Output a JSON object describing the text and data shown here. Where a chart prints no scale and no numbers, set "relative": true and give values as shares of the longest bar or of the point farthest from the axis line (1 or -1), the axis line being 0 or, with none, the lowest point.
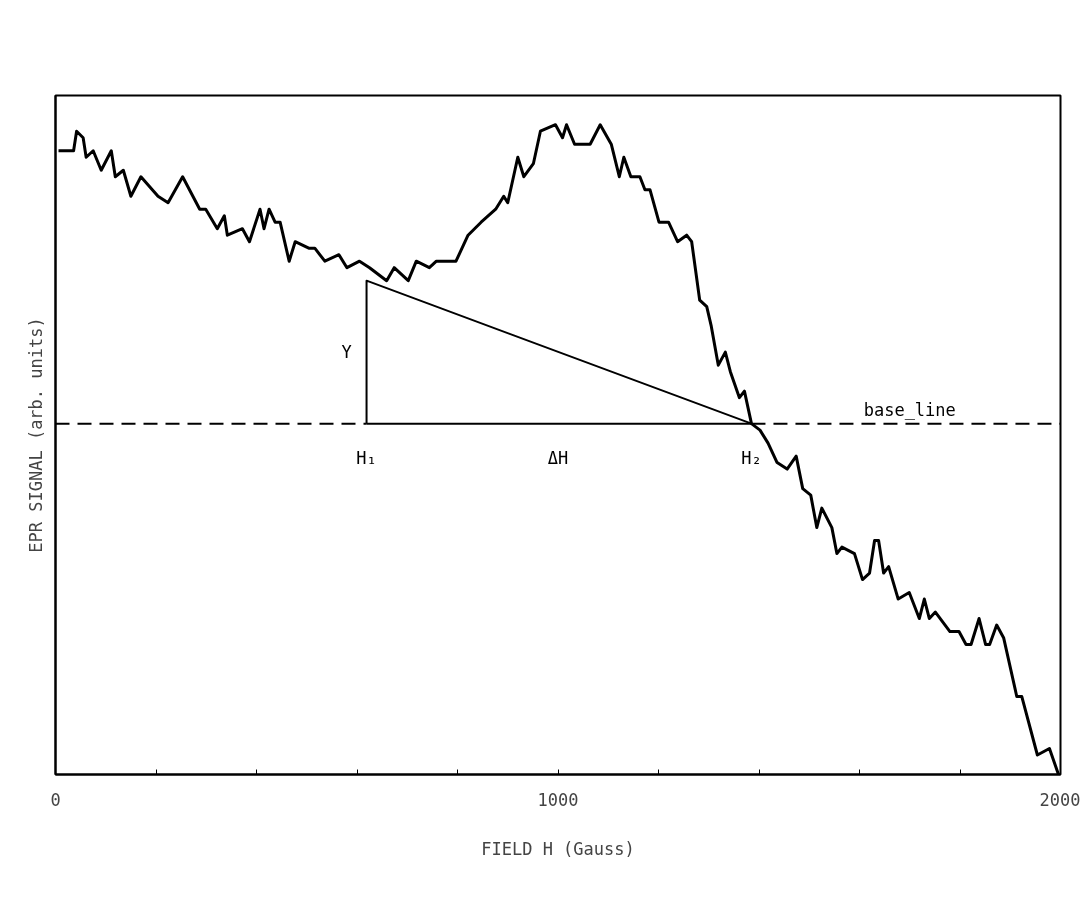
{
  "chart_data": {
    "type": "line",
    "relative": true,
    "xlabel": "FIELD H (Gauss)",
    "ylabel": "EPR SIGNAL (arb. units)",
    "xlim": [
      0,
      2000
    ],
    "xticks": [
      0,
      {
        "value": 200,
        "label": null
      },
      {
        "value": 400,
        "label": null
      },
      {
        "value": 600,
        "label": null
      },
      {
        "value": 800,
        "label": null
      },
      1000,
      {
        "value": 1200,
        "label": null
      },
      {
        "value": 1400,
        "label": null
      },
      {
        "value": 1600,
        "label": null
      },
      {
        "value": 1800,
        "label": null
      },
      2000
    ],
    "grid": false,
    "marker": "none",
    "line_style": "solid",
    "series": [
      {
        "color": "#000000",
        "x": [
          6,
          36,
          42,
          55,
          61,
          75,
          91,
          111,
          119,
          135,
          150,
          170,
          204,
          224,
          253,
          287,
          299,
          322,
          336,
          342,
          372,
          386,
          407,
          415,
          425,
          437,
          447,
          465,
          477,
          504,
          516,
          536,
          564,
          580,
          605,
          625,
          659,
          674,
          702,
          718,
          744,
          758,
          777,
          797,
          821,
          847,
          876,
          892,
          900,
          920,
          932,
          951,
          965,
          995,
          1009,
          1017,
          1033,
          1064,
          1084,
          1106,
          1122,
          1131,
          1145,
          1163,
          1173,
          1183,
          1201,
          1220,
          1238,
          1256,
          1266,
          1282,
          1296,
          1305,
          1319,
          1333,
          1343,
          1361,
          1371,
          1385,
          1402,
          1418,
          1436,
          1456,
          1474,
          1487,
          1503,
          1515,
          1525,
          1545,
          1555,
          1565,
          1590,
          1606,
          1620,
          1630,
          1638,
          1648,
          1658,
          1677,
          1699,
          1719,
          1729,
          1739,
          1751,
          1780,
          1798,
          1812,
          1822,
          1838,
          1851,
          1859,
          1873,
          1887,
          1913,
          1923,
          1954,
          1978,
          1996
        ],
        "values": [
          0.96,
          0.96,
          0.99,
          0.98,
          0.95,
          0.96,
          0.93,
          0.96,
          0.92,
          0.93,
          0.89,
          0.92,
          0.89,
          0.88,
          0.92,
          0.87,
          0.87,
          0.84,
          0.86,
          0.83,
          0.84,
          0.82,
          0.87,
          0.84,
          0.87,
          0.85,
          0.85,
          0.79,
          0.82,
          0.81,
          0.81,
          0.79,
          0.8,
          0.78,
          0.79,
          0.78,
          0.76,
          0.78,
          0.76,
          0.79,
          0.78,
          0.79,
          0.79,
          0.79,
          0.83,
          0.85,
          0.87,
          0.89,
          0.88,
          0.95,
          0.92,
          0.94,
          0.99,
          1.0,
          0.98,
          1.0,
          0.97,
          0.97,
          1.0,
          0.97,
          0.92,
          0.95,
          0.92,
          0.92,
          0.9,
          0.9,
          0.85,
          0.85,
          0.82,
          0.83,
          0.82,
          0.73,
          0.72,
          0.69,
          0.63,
          0.65,
          0.62,
          0.58,
          0.59,
          0.54,
          0.53,
          0.51,
          0.48,
          0.47,
          0.49,
          0.44,
          0.43,
          0.38,
          0.41,
          0.38,
          0.34,
          0.35,
          0.34,
          0.3,
          0.31,
          0.36,
          0.36,
          0.31,
          0.32,
          0.27,
          0.28,
          0.24,
          0.27,
          0.24,
          0.25,
          0.22,
          0.22,
          0.2,
          0.2,
          0.24,
          0.2,
          0.2,
          0.23,
          0.21,
          0.12,
          0.12,
          0.03,
          0.04,
          0.0
        ]
      },
      {
        "color": "#000000",
        "x": [
          619,
          619,
          1385
        ],
        "values": [
          0.54,
          0.76,
          0.54
        ]
      },
      {
        "color": "#000000",
        "x": [
          619,
          1385
        ],
        "values": [
          0.54,
          0.54
        ]
      },
      {
        "color": "#000000",
        "x": [
          0,
          619
        ],
        "values": [
          0.54,
          0.54
        ],
        "line_style": "dashed"
      },
      {
        "color": "#000000",
        "x": [
          1385,
          2000
        ],
        "values": [
          0.54,
          0.54
        ],
        "line_style": "dashed"
      }
    ],
    "annotations": [
      {
        "text": "Y",
        "x": 619,
        "y": 0.65
      },
      {
        "text": "H₁",
        "x": 619,
        "y": 0.54
      },
      {
        "text": "ΔH",
        "x": 1000,
        "y": 0.54
      },
      {
        "text": "H₂",
        "x": 1385,
        "y": 0.54
      },
      {
        "text": "base_line",
        "x": 1700,
        "y": 0.54
      }
    ]
  }
}
